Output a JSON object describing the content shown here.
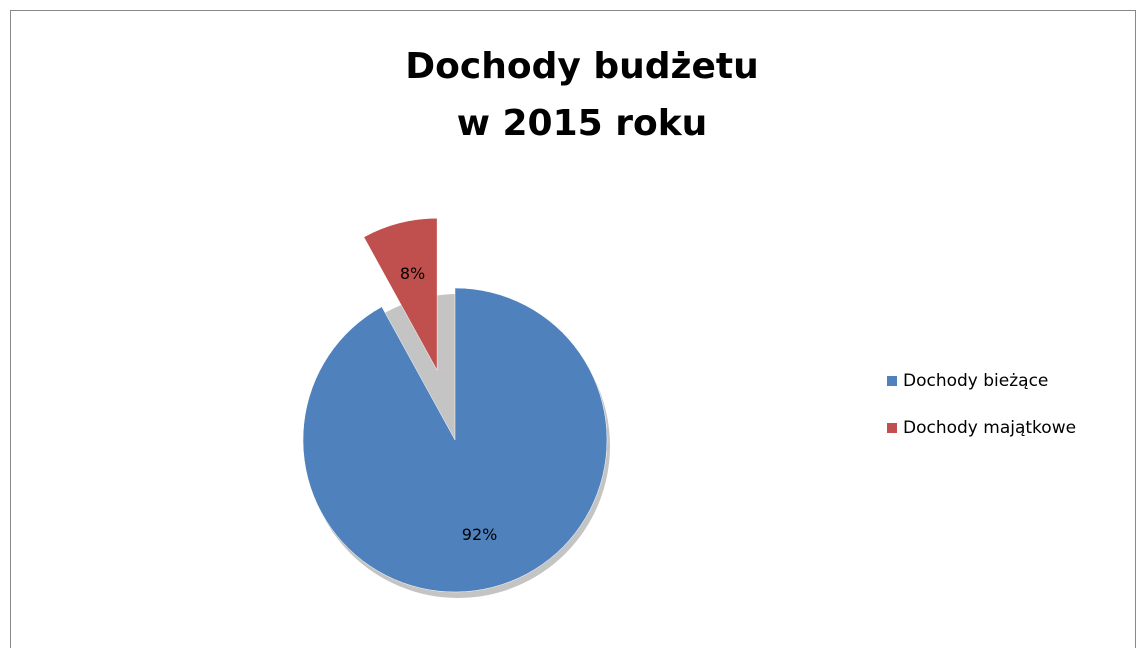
{
  "chart_data": {
    "type": "pie",
    "title": [
      "Dochody budżetu",
      "w 2015 roku"
    ],
    "categories": [
      "Dochody bieżące",
      "Dochody majątkowe"
    ],
    "values": [
      92,
      8
    ],
    "value_labels": [
      "92%",
      "8%"
    ],
    "colors": [
      "#4f81bd",
      "#c0504d"
    ],
    "exploded": [
      false,
      true
    ],
    "legend": "right"
  }
}
